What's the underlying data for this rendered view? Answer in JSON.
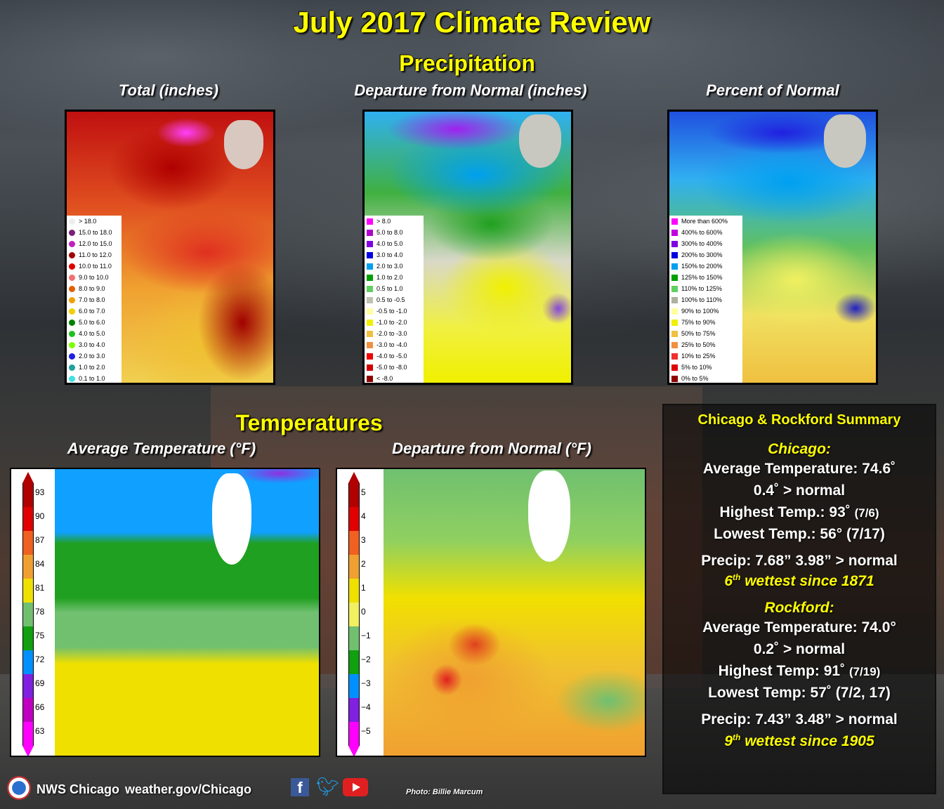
{
  "title": "July 2017 Climate Review",
  "precip_heading": "Precipitation",
  "temp_heading": "Temperatures",
  "panels": {
    "total": "Total (inches)",
    "departure": "Departure from Normal (inches)",
    "percent": "Percent of Normal",
    "avg_temp": "Average Temperature (°F)",
    "temp_dep": "Departure from Normal (°F)"
  },
  "legend_total": [
    {
      "label": "> 18.0",
      "color": "#eeeeee"
    },
    {
      "label": "15.0 to 18.0",
      "color": "#7a1f7a"
    },
    {
      "label": "12.0 to 15.0",
      "color": "#c020c0"
    },
    {
      "label": "11.0 to 12.0",
      "color": "#a00000"
    },
    {
      "label": "10.0 to 11.0",
      "color": "#e00000"
    },
    {
      "label": "9.0 to 10.0",
      "color": "#f07070"
    },
    {
      "label": "8.0 to 9.0",
      "color": "#e06000"
    },
    {
      "label": "7.0 to 8.0",
      "color": "#f0a000"
    },
    {
      "label": "6.0 to 7.0",
      "color": "#f0d000"
    },
    {
      "label": "5.0 to 6.0",
      "color": "#008000"
    },
    {
      "label": "4.0 to 5.0",
      "color": "#20c020"
    },
    {
      "label": "3.0 to 4.0",
      "color": "#80ff00"
    },
    {
      "label": "2.0 to 3.0",
      "color": "#2020e0"
    },
    {
      "label": "1.0 to 2.0",
      "color": "#20a0a0"
    },
    {
      "label": "0.1 to 1.0",
      "color": "#40e0e0"
    }
  ],
  "legend_departure": [
    {
      "label": "> 8.0",
      "color": "#ff00ff"
    },
    {
      "label": "5.0 to 8.0",
      "color": "#b000d0"
    },
    {
      "label": "4.0 to 5.0",
      "color": "#8000e0"
    },
    {
      "label": "3.0 to 4.0",
      "color": "#0000e0"
    },
    {
      "label": "2.0 to 3.0",
      "color": "#00a0f0"
    },
    {
      "label": "1.0 to 2.0",
      "color": "#00a000"
    },
    {
      "label": "0.5 to 1.0",
      "color": "#60d060"
    },
    {
      "label": "0.5 to -0.5",
      "color": "#c0c0b0"
    },
    {
      "label": "-0.5 to -1.0",
      "color": "#ffffa0"
    },
    {
      "label": "-1.0 to -2.0",
      "color": "#f0f000"
    },
    {
      "label": "-2.0 to -3.0",
      "color": "#f0c040"
    },
    {
      "label": "-3.0 to -4.0",
      "color": "#f09040"
    },
    {
      "label": "-4.0 to -5.0",
      "color": "#f00000"
    },
    {
      "label": "-5.0 to -8.0",
      "color": "#d00000"
    },
    {
      "label": "< -8.0",
      "color": "#900000"
    }
  ],
  "legend_percent": [
    {
      "label": "More than 600%",
      "color": "#ff00ff"
    },
    {
      "label": "400% to 600%",
      "color": "#c000e0"
    },
    {
      "label": "300% to 400%",
      "color": "#8000e0"
    },
    {
      "label": "200% to 300%",
      "color": "#0000e0"
    },
    {
      "label": "150% to 200%",
      "color": "#00a0f0"
    },
    {
      "label": "125% to 150%",
      "color": "#00a000"
    },
    {
      "label": "110% to 125%",
      "color": "#60d060"
    },
    {
      "label": "100% to 110%",
      "color": "#b0b0a0"
    },
    {
      "label": "90% to 100%",
      "color": "#ffffa0"
    },
    {
      "label": "75% to 90%",
      "color": "#f0f000"
    },
    {
      "label": "50% to 75%",
      "color": "#f0c040"
    },
    {
      "label": "25% to 50%",
      "color": "#f09040"
    },
    {
      "label": "10% to 25%",
      "color": "#f03030"
    },
    {
      "label": "5% to 10%",
      "color": "#e00000"
    },
    {
      "label": "0% to 5%",
      "color": "#900000"
    }
  ],
  "temp_scale": [
    {
      "label": "93",
      "color": "#b00000"
    },
    {
      "label": "90",
      "color": "#e00000"
    },
    {
      "label": "87",
      "color": "#f06020"
    },
    {
      "label": "84",
      "color": "#f0a030"
    },
    {
      "label": "81",
      "color": "#f0e000"
    },
    {
      "label": "78",
      "color": "#70c070"
    },
    {
      "label": "75",
      "color": "#10a010"
    },
    {
      "label": "72",
      "color": "#0090ff"
    },
    {
      "label": "69",
      "color": "#8020e0"
    },
    {
      "label": "66",
      "color": "#c000c0"
    },
    {
      "label": "63",
      "color": "#ff00ff"
    }
  ],
  "dep_scale": [
    {
      "label": "5",
      "color": "#b00000"
    },
    {
      "label": "4",
      "color": "#e00000"
    },
    {
      "label": "3",
      "color": "#f06020"
    },
    {
      "label": "2",
      "color": "#f0a030"
    },
    {
      "label": "1",
      "color": "#f0e000"
    },
    {
      "label": "0",
      "color": "#f0f060"
    },
    {
      "label": "−1",
      "color": "#70c070"
    },
    {
      "label": "−2",
      "color": "#10a010"
    },
    {
      "label": "−3",
      "color": "#0090ff"
    },
    {
      "label": "−4",
      "color": "#8020e0"
    },
    {
      "label": "−5",
      "color": "#ff00ff"
    }
  ],
  "summary": {
    "heading": "Chicago & Rockford Summary",
    "chicago": {
      "name": "Chicago:",
      "avg": "Average Temperature: 74.6˚",
      "avg_dep": "0.4˚ > normal",
      "high": "Highest Temp.: 93˚",
      "high_date": "(7/6)",
      "low": "Lowest Temp.: 56° (7/17)",
      "precip": "Precip: 7.68”  3.98” > normal",
      "rank_num": "6",
      "rank_sup": "th",
      "rank_text": " wettest since 1871"
    },
    "rockford": {
      "name": "Rockford:",
      "avg": "Average Temperature: 74.0°",
      "avg_dep": "0.2˚ > normal",
      "high": "Highest Temp: 91˚",
      "high_date": "(7/19)",
      "low": "Lowest Temp: 57˚ (7/2, 17)",
      "precip": "Precip: 7.43”  3.48” > normal",
      "rank_num": "9",
      "rank_sup": "th",
      "rank_text": " wettest since 1905"
    }
  },
  "footer": {
    "office": "NWS Chicago",
    "url": "weather.gov/Chicago",
    "photo": "Photo: Billie Marcum",
    "social": [
      "facebook-icon",
      "twitter-icon",
      "youtube-icon"
    ]
  }
}
